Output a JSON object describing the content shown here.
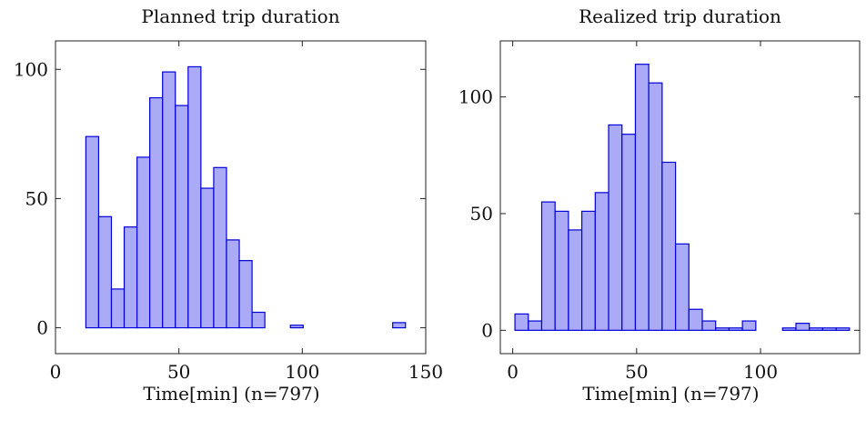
{
  "colors": {
    "bar_fill": "#aaaaf6",
    "bar_edge": "#0000d8",
    "axis": "#222222"
  },
  "chart_data": [
    {
      "type": "bar",
      "subtype": "histogram",
      "title": "Planned trip duration",
      "xlabel": "Time[min] (n=797)",
      "ylabel": "",
      "xlim": [
        0,
        150
      ],
      "ylim": [
        -10,
        111
      ],
      "xticks": [
        0,
        50,
        100,
        150
      ],
      "yticks": [
        0,
        50,
        100
      ],
      "grid": false,
      "bin_width": 5.18,
      "bins": [
        {
          "x0": 12.3,
          "count": 74
        },
        {
          "x0": 17.48,
          "count": 43
        },
        {
          "x0": 22.66,
          "count": 15
        },
        {
          "x0": 27.84,
          "count": 39
        },
        {
          "x0": 33.02,
          "count": 66
        },
        {
          "x0": 38.2,
          "count": 89
        },
        {
          "x0": 43.38,
          "count": 99
        },
        {
          "x0": 48.56,
          "count": 86
        },
        {
          "x0": 53.74,
          "count": 101
        },
        {
          "x0": 58.92,
          "count": 54
        },
        {
          "x0": 64.1,
          "count": 62
        },
        {
          "x0": 69.28,
          "count": 34
        },
        {
          "x0": 74.46,
          "count": 26
        },
        {
          "x0": 79.64,
          "count": 6
        },
        {
          "x0": 84.82,
          "count": 0
        },
        {
          "x0": 90.0,
          "count": 0
        },
        {
          "x0": 95.18,
          "count": 1
        },
        {
          "x0": 100.36,
          "count": 0
        },
        {
          "x0": 105.54,
          "count": 0
        },
        {
          "x0": 110.72,
          "count": 0
        },
        {
          "x0": 115.9,
          "count": 0
        },
        {
          "x0": 121.08,
          "count": 0
        },
        {
          "x0": 126.26,
          "count": 0
        },
        {
          "x0": 131.44,
          "count": 0
        },
        {
          "x0": 136.62,
          "count": 2
        }
      ]
    },
    {
      "type": "bar",
      "subtype": "histogram",
      "title": "Realized trip duration",
      "xlabel": "Time[min] (n=797)",
      "ylabel": "",
      "xlim": [
        -5,
        140
      ],
      "ylim": [
        -10,
        124
      ],
      "xticks": [
        0,
        50,
        100
      ],
      "yticks": [
        0,
        50,
        100
      ],
      "grid": false,
      "bin_width": 5.4,
      "bins": [
        {
          "x0": 0.9,
          "count": 7
        },
        {
          "x0": 6.3,
          "count": 4
        },
        {
          "x0": 11.7,
          "count": 55
        },
        {
          "x0": 17.1,
          "count": 51
        },
        {
          "x0": 22.5,
          "count": 43
        },
        {
          "x0": 27.9,
          "count": 51
        },
        {
          "x0": 33.3,
          "count": 59
        },
        {
          "x0": 38.7,
          "count": 88
        },
        {
          "x0": 44.1,
          "count": 84
        },
        {
          "x0": 49.5,
          "count": 114
        },
        {
          "x0": 54.9,
          "count": 106
        },
        {
          "x0": 60.3,
          "count": 72
        },
        {
          "x0": 65.7,
          "count": 37
        },
        {
          "x0": 71.1,
          "count": 9
        },
        {
          "x0": 76.5,
          "count": 4
        },
        {
          "x0": 81.9,
          "count": 1
        },
        {
          "x0": 87.3,
          "count": 1
        },
        {
          "x0": 92.7,
          "count": 4
        },
        {
          "x0": 98.1,
          "count": 0
        },
        {
          "x0": 103.5,
          "count": 0
        },
        {
          "x0": 108.9,
          "count": 1
        },
        {
          "x0": 114.3,
          "count": 3
        },
        {
          "x0": 119.7,
          "count": 1
        },
        {
          "x0": 125.1,
          "count": 1
        },
        {
          "x0": 130.5,
          "count": 1
        }
      ]
    }
  ]
}
